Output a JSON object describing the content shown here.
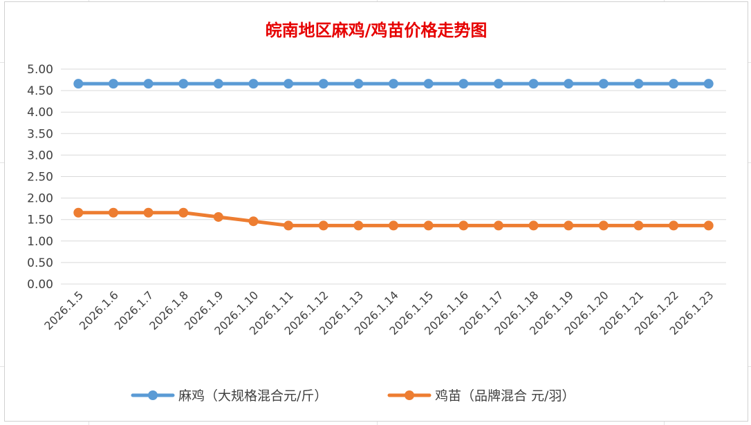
{
  "chart_data": {
    "type": "line",
    "title": "皖南地区麻鸡/鸡苗价格走势图",
    "categories": [
      "2026.1.5",
      "2026.1.6",
      "2026.1.7",
      "2026.1.8",
      "2026.1.9",
      "2026.1.10",
      "2026.1.11",
      "2026.1.12",
      "2026.1.13",
      "2026.1.14",
      "2026.1.15",
      "2026.1.16",
      "2026.1.17",
      "2026.1.18",
      "2026.1.19",
      "2026.1.20",
      "2026.1.21",
      "2026.1.22",
      "2026.1.23"
    ],
    "yticks": [
      "0.00",
      "0.50",
      "1.00",
      "1.50",
      "2.00",
      "2.50",
      "3.00",
      "3.50",
      "4.00",
      "4.50",
      "5.00"
    ],
    "ylim": [
      0,
      5
    ],
    "grid": true,
    "legend": "bottom",
    "series": [
      {
        "name": "麻鸡（大规格混合元/斤）",
        "color": "#5b9bd5",
        "values": [
          4.66,
          4.66,
          4.66,
          4.66,
          4.66,
          4.66,
          4.66,
          4.66,
          4.66,
          4.66,
          4.66,
          4.66,
          4.66,
          4.66,
          4.66,
          4.66,
          4.66,
          4.66,
          4.66
        ]
      },
      {
        "name": "鸡苗（品牌混合 元/羽）",
        "color": "#ed7d31",
        "values": [
          1.66,
          1.66,
          1.66,
          1.66,
          1.56,
          1.46,
          1.36,
          1.36,
          1.36,
          1.36,
          1.36,
          1.36,
          1.36,
          1.36,
          1.36,
          1.36,
          1.36,
          1.36,
          1.36
        ]
      }
    ]
  }
}
